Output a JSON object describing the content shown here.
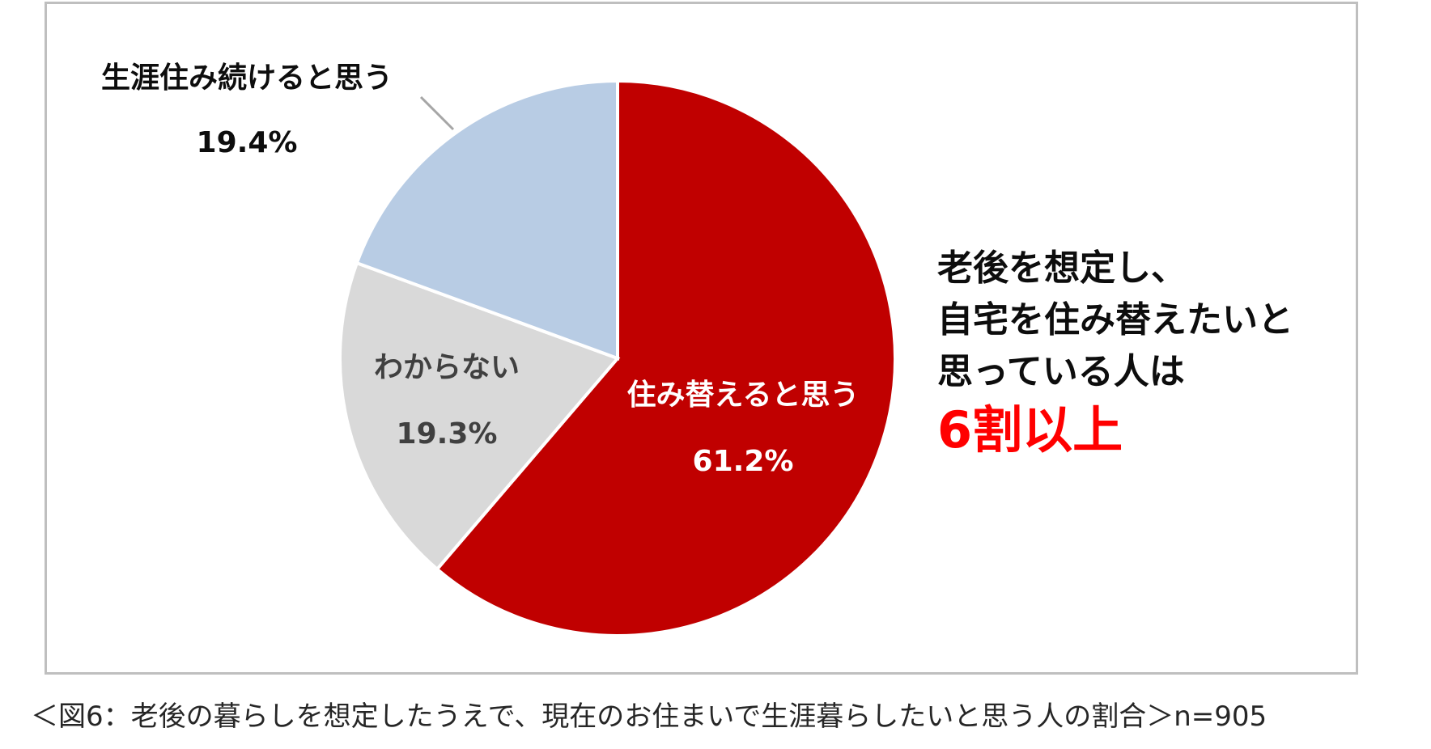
{
  "chart_data": {
    "type": "pie",
    "slices": [
      {
        "label": "住み替えると思う",
        "value_label": "61.2%",
        "value": 61.2,
        "color": "#c00000",
        "text_color": "#ffffff"
      },
      {
        "label": "わからない",
        "value_label": "19.3%",
        "value": 19.3,
        "color": "#d9d9d9",
        "text_color": "#404040"
      },
      {
        "label": "生涯住み続けると思う",
        "value_label": "19.4%",
        "value": 19.4,
        "color": "#b8cce4",
        "text_color": "#0d0d0d"
      }
    ],
    "start_angle_deg": 0,
    "direction": "clockwise"
  },
  "annotation": {
    "lines": [
      "老後を想定し、",
      "自宅を住み替えたいと",
      "思っている人は"
    ],
    "highlight": "6割以上",
    "highlight_color": "#ff0000"
  },
  "caption": "＜図6：老後の暮らしを想定したうえで、現在のお住まいで生涯暮らしたいと思う人の割合＞n=905"
}
